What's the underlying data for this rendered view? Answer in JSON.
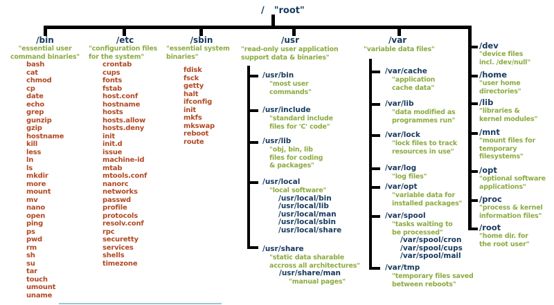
{
  "root_node": {
    "slash": "/",
    "label": "\"root\""
  },
  "colors": {
    "directory": "#17395c",
    "description": "#8cab42",
    "file": "#b04a24",
    "line": "#000000",
    "accent_underline": "#9fc6cf"
  },
  "columns": {
    "bin": {
      "label": "/bin",
      "desc": "\"essential user\ncommand binaries\"",
      "files": [
        "bash",
        "cat",
        "chmod",
        "cp",
        "date",
        "echo",
        "grep",
        "gunzip",
        "gzip",
        "hostname",
        "kill",
        "less",
        "ln",
        "ls",
        "mkdir",
        "more",
        "mount",
        "mv",
        "nano",
        "open",
        "ping",
        "ps",
        "pwd",
        "rm",
        "sh",
        "su",
        "tar",
        "touch",
        "umount",
        "uname"
      ]
    },
    "etc": {
      "label": "/etc",
      "desc": "\"configuration files\nfor the system\"",
      "files": [
        "crontab",
        "cups",
        "fonts",
        "fstab",
        "host.conf",
        "hostname",
        "hosts",
        "hosts.allow",
        "hosts.deny",
        "init",
        "init.d",
        "issue",
        "machine-id",
        "mtab",
        "mtools.conf",
        "nanorc",
        "networks",
        "passwd",
        "profile",
        "protocols",
        "resolv.conf",
        "rpc",
        "securetty",
        "services",
        "shells",
        "timezone"
      ]
    },
    "sbin": {
      "label": "/sbin",
      "desc": "\"essential system\nbinaries\"",
      "files": [
        "fdisk",
        "fsck",
        "getty",
        "halt",
        "ifconfig",
        "init",
        "mkfs",
        "mkswap",
        "reboot",
        "route"
      ]
    },
    "usr": {
      "label": "/usr",
      "desc": "\"read-only user application\nsupport data & binaries\"",
      "bin": {
        "label": "/usr/bin",
        "desc": "\"most user\ncommands\""
      },
      "include": {
        "label": "/usr/include",
        "desc": "\"standard include\nfiles for 'C' code\""
      },
      "lib": {
        "label": "/usr/lib",
        "desc": "\"obj, bin, lib\nfiles for coding\n& packages\""
      },
      "local": {
        "label": "/usr/local",
        "desc": "\"local software\"",
        "subdirs": [
          "/usr/local/bin",
          "/usr/local/lib",
          "/usr/local/man",
          "/usr/local/sbin",
          "/usr/local/share"
        ]
      },
      "share": {
        "label": "/usr/share",
        "desc": "\"static data sharable\naccross all architectures\"",
        "man_label": "/usr/share/man",
        "man_desc": "\"manual pages\""
      }
    },
    "var": {
      "label": "/var",
      "desc": "\"variable data files\"",
      "cache": {
        "label": "/var/cache",
        "desc": "\"application\ncache data\""
      },
      "lib": {
        "label": "/var/lib",
        "desc": "\"data modified as\nprogrammes run\""
      },
      "lock": {
        "label": "/var/lock",
        "desc": "\"lock files to track\nresources in use\""
      },
      "log": {
        "label": "/var/log",
        "desc": "\"log files\""
      },
      "opt": {
        "label": "/var/opt",
        "desc": "\"variable data for\ninstalled packages\""
      },
      "spool": {
        "label": "/var/spool",
        "desc": "\"tasks waiting to\nbe processed\"",
        "subdirs": [
          "/var/spool/cron",
          "/var/spool/cups",
          "/var/spool/mail"
        ]
      },
      "tmp": {
        "label": "/var/tmp",
        "desc": "\"temporary files saved\nbetween reboots\""
      }
    },
    "right": {
      "dev": {
        "label": "/dev",
        "desc": "\"device files\nincl. /dev/null\""
      },
      "home": {
        "label": "/home",
        "desc": "\"user home\ndirectories\""
      },
      "lib": {
        "label": "/lib",
        "desc": "\"libraries &\nkernel modules\""
      },
      "mnt": {
        "label": "/mnt",
        "desc": "\"mount files for\ntemporary\nfilesystems\""
      },
      "opt": {
        "label": "/opt",
        "desc": "\"optional software\napplications\""
      },
      "proc": {
        "label": "/proc",
        "desc": "\"process & kernel\ninformation files\""
      },
      "root": {
        "label": "/root",
        "desc": "\"home dir. for\nthe root user\""
      }
    }
  }
}
